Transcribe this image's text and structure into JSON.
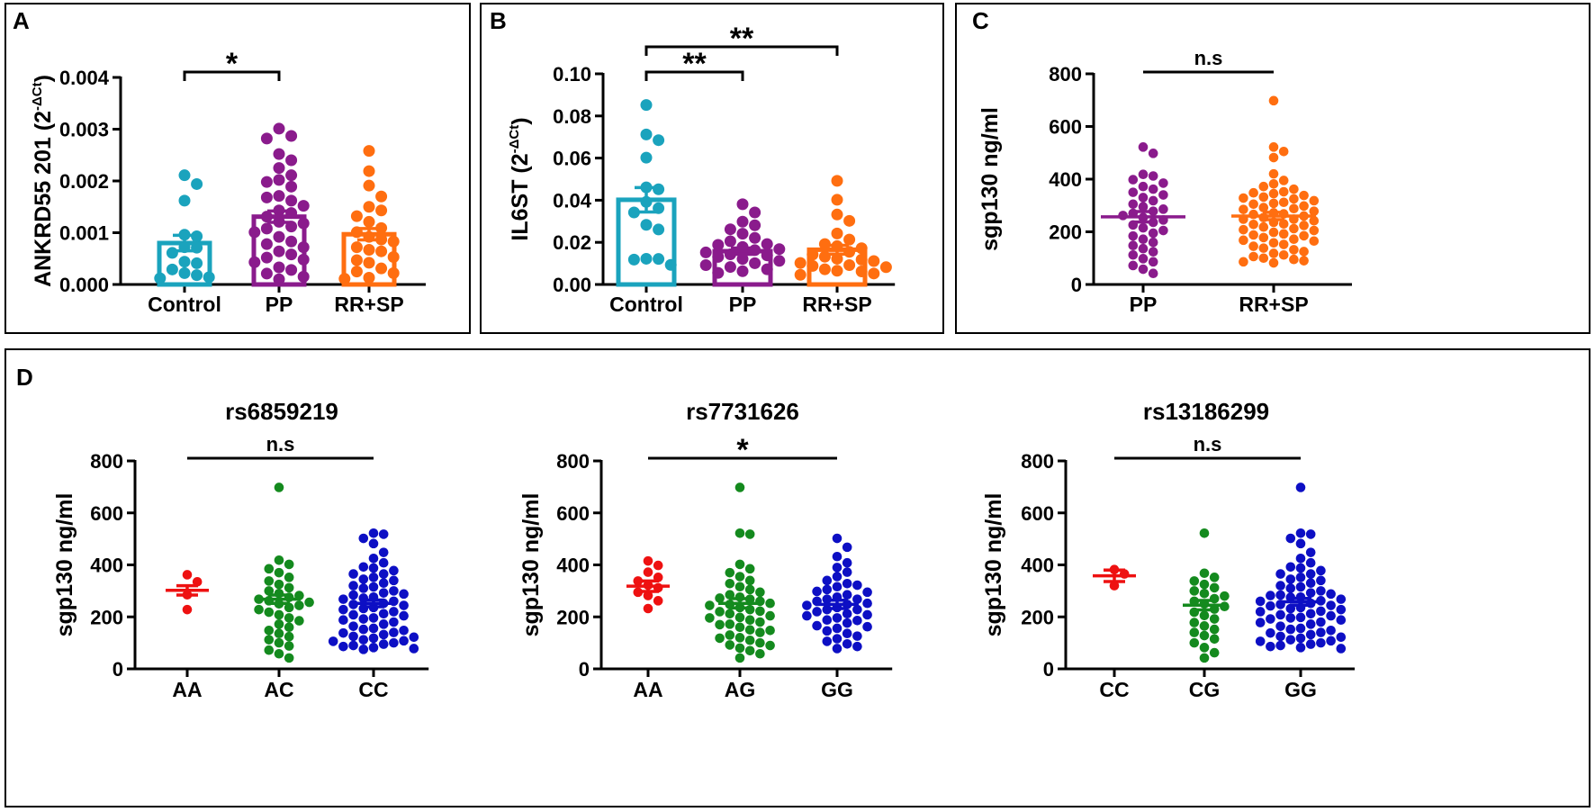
{
  "colors": {
    "teal": "#1aa3bd",
    "purple": "#8a1b8c",
    "orange": "#ff6e10",
    "red": "#ee1111",
    "green": "#148a1e",
    "blue": "#0d0fc4"
  },
  "chart_data": [
    {
      "id": "A",
      "panel_label": "A",
      "type": "bar",
      "ylabel_main": "ANKRD55 201 (2",
      "ylabel_sup": "-ΔCt",
      "ylabel_tail": ")",
      "ylim": [
        0,
        0.004
      ],
      "yticks": [
        "0.000",
        "0.001",
        "0.002",
        "0.003",
        "0.004"
      ],
      "categories": [
        "Control",
        "PP",
        "RR+SP"
      ],
      "means": [
        0.0008,
        0.00131,
        0.00097
      ],
      "sems": [
        0.00015,
        0.00011,
        0.00011
      ],
      "colors": [
        "teal",
        "purple",
        "orange"
      ],
      "points": [
        [
          0.00211,
          0.00194,
          0.00162,
          0.00096,
          0.00093,
          0.00072,
          0.00071,
          0.00061,
          0.00044,
          0.00041,
          0.00029,
          0.00022,
          0.00018,
          0.00012,
          0.00014
        ],
        [
          0.00301,
          0.00287,
          0.00282,
          0.00252,
          0.0024,
          0.00225,
          0.00211,
          0.00202,
          0.00189,
          0.00171,
          0.00162,
          0.00152,
          0.00143,
          0.00131,
          0.00121,
          0.00112,
          0.00101,
          0.00092,
          0.00083,
          0.00072,
          0.00064,
          0.00052,
          0.00043,
          0.00033,
          0.00021,
          0.00015,
          0.0001,
          0.00168,
          0.00138,
          0.00108,
          0.00078,
          0.00048,
          0.00028,
          0.00118,
          0.00058,
          0.00198
        ],
        [
          0.00258,
          0.00219,
          0.00191,
          0.0017,
          0.00143,
          0.00132,
          0.00121,
          0.00109,
          0.00101,
          0.00092,
          0.00083,
          0.00072,
          0.00064,
          0.00053,
          0.00042,
          0.00031,
          0.00022,
          0.00013,
          0.00011,
          0.0015,
          0.00087,
          0.00067,
          0.00047,
          0.00025
        ]
      ],
      "comparisons": [
        {
          "from": 0,
          "to": 1,
          "label": "*"
        }
      ]
    },
    {
      "id": "B",
      "panel_label": "B",
      "type": "bar",
      "ylabel_main": "IL6ST (2",
      "ylabel_sup": "-ΔCt",
      "ylabel_tail": ")",
      "ylim": [
        0,
        0.1
      ],
      "yticks": [
        "0.00",
        "0.02",
        "0.04",
        "0.06",
        "0.08",
        "0.10"
      ],
      "categories": [
        "Control",
        "PP",
        "RR+SP"
      ],
      "means": [
        0.0402,
        0.0158,
        0.0165
      ],
      "sems": [
        0.0058,
        0.0015,
        0.0021
      ],
      "colors": [
        "teal",
        "purple",
        "orange"
      ],
      "points": [
        [
          0.0852,
          0.0712,
          0.0685,
          0.0602,
          0.0461,
          0.0452,
          0.0392,
          0.0362,
          0.0342,
          0.0283,
          0.0261,
          0.0122,
          0.0121,
          0.0118,
          0.0093
        ],
        [
          0.0381,
          0.0342,
          0.0298,
          0.0281,
          0.0262,
          0.0241,
          0.0221,
          0.0205,
          0.0192,
          0.0178,
          0.0163,
          0.0152,
          0.0143,
          0.0131,
          0.0121,
          0.0112,
          0.0101,
          0.0092,
          0.0083,
          0.0072,
          0.0063,
          0.0055,
          0.0168,
          0.0138,
          0.0188
        ],
        [
          0.0492,
          0.0402,
          0.0332,
          0.0302,
          0.0242,
          0.0213,
          0.0192,
          0.0172,
          0.0155,
          0.0142,
          0.0132,
          0.0122,
          0.0111,
          0.0102,
          0.0092,
          0.0082,
          0.0072,
          0.0062,
          0.0052,
          0.0046,
          0.0182,
          0.0118,
          0.0088,
          0.0065
        ]
      ],
      "comparisons": [
        {
          "from": 0,
          "to": 1,
          "label": "**"
        },
        {
          "from": 0,
          "to": 2,
          "label": "**"
        }
      ]
    },
    {
      "id": "C",
      "panel_label": "C",
      "type": "scatter",
      "ylabel_main": "sgp130 ng/ml",
      "ylim": [
        0,
        800
      ],
      "yticks": [
        "0",
        "200",
        "400",
        "600",
        "800"
      ],
      "categories": [
        "PP",
        "RR+SP"
      ],
      "means": [
        257,
        260
      ],
      "sems": [
        20,
        14
      ],
      "colors": [
        "purple",
        "orange"
      ],
      "points": [
        [
          522,
          498,
          418,
          412,
          398,
          385,
          372,
          362,
          350,
          340,
          330,
          318,
          305,
          295,
          286,
          278,
          270,
          262,
          254,
          245,
          236,
          226,
          215,
          205,
          195,
          184,
          172,
          160,
          148,
          136,
          124,
          112,
          98,
          86,
          72,
          58,
          42
        ],
        [
          698,
          522,
          505,
          482,
          420,
          395,
          382,
          372,
          362,
          352,
          345,
          338,
          332,
          325,
          318,
          312,
          305,
          298,
          292,
          285,
          278,
          272,
          266,
          260,
          254,
          248,
          242,
          236,
          230,
          224,
          218,
          212,
          205,
          198,
          192,
          185,
          178,
          172,
          165,
          158,
          152,
          145,
          138,
          132,
          125,
          118,
          112,
          106,
          100,
          95,
          90,
          86,
          82,
          268,
          248,
          288,
          228,
          308,
          208,
          328,
          188,
          348,
          168
        ]
      ],
      "comparisons": [
        {
          "from": 0,
          "to": 1,
          "label": "n.s"
        }
      ]
    },
    {
      "id": "D1",
      "panel_label": "D",
      "title": "rs6859219",
      "type": "scatter",
      "ylabel_main": "sgp130 ng/ml",
      "ylim": [
        0,
        800
      ],
      "yticks": [
        "0",
        "200",
        "400",
        "600",
        "800"
      ],
      "categories": [
        "AA",
        "AC",
        "CC"
      ],
      "means": [
        302,
        268,
        252
      ],
      "sems": [
        18,
        16,
        13
      ],
      "colors": [
        "red",
        "green",
        "blue"
      ],
      "points": [
        [
          362,
          335,
          285,
          228
        ],
        [
          698,
          418,
          402,
          385,
          370,
          352,
          338,
          325,
          312,
          300,
          290,
          282,
          275,
          268,
          262,
          256,
          250,
          244,
          236,
          228,
          218,
          208,
          196,
          185,
          172,
          160,
          148,
          136,
          124,
          112,
          100,
          88,
          72,
          58,
          42
        ],
        [
          522,
          518,
          502,
          482,
          448,
          425,
          408,
          392,
          378,
          365,
          352,
          340,
          330,
          320,
          310,
          300,
          292,
          284,
          276,
          268,
          260,
          252,
          244,
          236,
          228,
          220,
          212,
          204,
          196,
          188,
          180,
          172,
          164,
          156,
          148,
          140,
          132,
          125,
          118,
          112,
          106,
          100,
          95,
          90,
          86,
          82,
          78,
          75,
          272,
          288,
          248,
          232,
          208,
          192,
          152,
          138,
          122,
          108,
          315,
          345,
          365,
          388
        ]
      ],
      "comparisons": [
        {
          "from": 0,
          "to": 2,
          "label": "n.s"
        }
      ]
    },
    {
      "id": "D2",
      "title": "rs7731626",
      "type": "scatter",
      "ylabel_main": "sgp130 ng/ml",
      "ylim": [
        0,
        800
      ],
      "yticks": [
        "0",
        "200",
        "400",
        "600",
        "800"
      ],
      "categories": [
        "AA",
        "AG",
        "GG"
      ],
      "means": [
        318,
        252,
        248
      ],
      "sems": [
        20,
        18,
        16
      ],
      "colors": [
        "red",
        "green",
        "blue"
      ],
      "points": [
        [
          415,
          398,
          372,
          352,
          338,
          322,
          312,
          295,
          282,
          262,
          232
        ],
        [
          698,
          522,
          518,
          402,
          385,
          370,
          355,
          340,
          328,
          316,
          305,
          295,
          285,
          276,
          268,
          260,
          252,
          244,
          236,
          228,
          220,
          212,
          204,
          196,
          188,
          180,
          170,
          160,
          150,
          140,
          130,
          120,
          110,
          100,
          90,
          80,
          70,
          58,
          42,
          272,
          248,
          222,
          198,
          172,
          148,
          118,
          92
        ],
        [
          502,
          468,
          432,
          408,
          390,
          372,
          355,
          340,
          328,
          316,
          305,
          295,
          285,
          276,
          268,
          260,
          252,
          244,
          236,
          228,
          220,
          212,
          204,
          196,
          186,
          176,
          166,
          156,
          146,
          136,
          126,
          116,
          106,
          96,
          86,
          78,
          268,
          248,
          228,
          298,
          208,
          322,
          188,
          162
        ]
      ],
      "comparisons": [
        {
          "from": 0,
          "to": 2,
          "label": "*"
        }
      ]
    },
    {
      "id": "D3",
      "title": "rs13186299",
      "type": "scatter",
      "ylabel_main": "sgp130 ng/ml",
      "ylim": [
        0,
        800
      ],
      "yticks": [
        "0",
        "200",
        "400",
        "600",
        "800"
      ],
      "categories": [
        "CC",
        "CG",
        "GG"
      ],
      "means": [
        358,
        245,
        258
      ],
      "sems": [
        22,
        18,
        13
      ],
      "colors": [
        "red",
        "green",
        "blue"
      ],
      "points": [
        [
          382,
          365,
          320
        ],
        [
          522,
          368,
          352,
          338,
          325,
          312,
          300,
          290,
          280,
          270,
          260,
          250,
          240,
          230,
          218,
          205,
          192,
          178,
          165,
          152,
          140,
          128,
          115,
          100,
          82,
          62,
          42
        ],
        [
          698,
          522,
          518,
          502,
          482,
          448,
          425,
          408,
          392,
          378,
          365,
          352,
          340,
          330,
          320,
          310,
          300,
          292,
          284,
          276,
          268,
          260,
          252,
          244,
          236,
          228,
          220,
          212,
          204,
          196,
          188,
          180,
          172,
          164,
          156,
          148,
          140,
          132,
          125,
          118,
          112,
          106,
          100,
          95,
          90,
          86,
          82,
          78,
          275,
          288,
          248,
          232,
          208,
          192,
          152,
          138,
          122,
          108,
          315,
          345,
          365,
          388,
          262,
          282,
          242,
          222,
          198,
          178
        ]
      ],
      "comparisons": [
        {
          "from": 0,
          "to": 2,
          "label": "n.s"
        }
      ]
    }
  ]
}
